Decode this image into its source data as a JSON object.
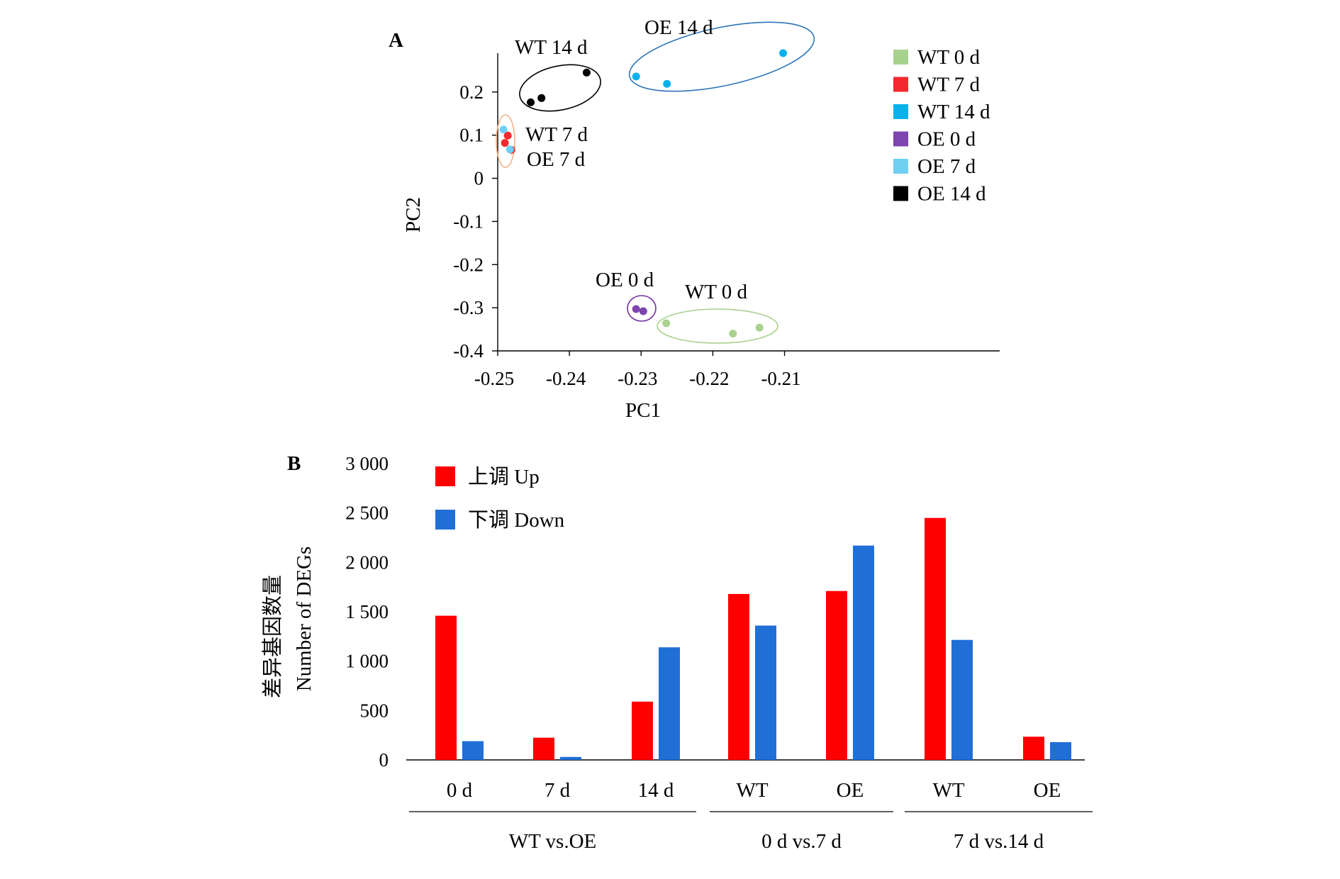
{
  "figure": {
    "panel_a_label": "A",
    "panel_b_label": "B"
  },
  "chart_data": [
    {
      "type": "scatter",
      "xlabel": "PC1",
      "ylabel": "PC2",
      "xlim": [
        -0.25,
        -0.18
      ],
      "ylim": [
        -0.4,
        0.29
      ],
      "xticks": [
        -0.25,
        -0.24,
        -0.23,
        -0.22,
        -0.21
      ],
      "xtick_labels": [
        "-0.25",
        "-0.24",
        "-0.23",
        "-0.22",
        "-0.21"
      ],
      "yticks": [
        0.2,
        0.1,
        0,
        -0.1,
        -0.2,
        -0.3,
        -0.4
      ],
      "ytick_labels": [
        "0.2",
        "0.1",
        "0",
        "-0.1",
        "-0.2",
        "-0.3",
        "-0.4"
      ],
      "legend_position": "top-right",
      "series": [
        {
          "name": "WT 0 d",
          "color": "#a9d18e",
          "points": [
            [
              -0.2265,
              -0.336
            ],
            [
              -0.2172,
              -0.36
            ],
            [
              -0.2135,
              -0.346
            ]
          ]
        },
        {
          "name": "WT 7 d",
          "color": "#f4282e",
          "points": [
            [
              -0.249,
              0.082
            ],
            [
              -0.2486,
              0.099
            ],
            [
              -0.2481,
              0.066
            ]
          ]
        },
        {
          "name": "WT 14 d",
          "color": "#0cb0ec",
          "points": [
            [
              -0.2307,
              0.236
            ],
            [
              -0.2264,
              0.219
            ],
            [
              -0.2102,
              0.29
            ]
          ]
        },
        {
          "name": "OE 0 d",
          "color": "#7e45b0",
          "points": [
            [
              -0.2307,
              -0.303
            ],
            [
              -0.2297,
              -0.308
            ]
          ]
        },
        {
          "name": "OE 7 d",
          "color": "#70d0f4",
          "points": [
            [
              -0.2492,
              0.113
            ],
            [
              -0.2483,
              0.067
            ]
          ]
        },
        {
          "name": "OE 14 d",
          "color": "#000000",
          "points": [
            [
              -0.2454,
              0.176
            ],
            [
              -0.2439,
              0.186
            ],
            [
              -0.2376,
              0.245
            ]
          ]
        }
      ],
      "clusters": [
        {
          "label": "WT 14 d",
          "color": "#000000"
        },
        {
          "label": "OE 14 d",
          "color": "#2e75b6"
        },
        {
          "label": "WT 7 d",
          "color": "#f4b183"
        },
        {
          "label": "OE 7 d",
          "color": "#f4b183"
        },
        {
          "label": "OE 0 d",
          "color": "#7030a0"
        },
        {
          "label": "WT 0 d",
          "color": "#a9d18e"
        }
      ]
    },
    {
      "type": "bar",
      "ylabel_cn": "差异基因数量",
      "ylabel_en": "Number of DEGs",
      "ylim": [
        0,
        3000
      ],
      "yticks": [
        0,
        500,
        1000,
        1500,
        2000,
        2500,
        3000
      ],
      "ytick_labels": [
        "0",
        "500",
        "1 000",
        "1 500",
        "2 000",
        "2 500",
        "3 000"
      ],
      "legend_position": "top-left",
      "categories": [
        "0 d",
        "7 d",
        "14 d",
        "WT",
        "OE",
        "WT",
        "OE"
      ],
      "groups": [
        {
          "label": "WT vs.OE",
          "span": [
            0,
            2
          ]
        },
        {
          "label": "0 d vs.7 d",
          "span": [
            3,
            4
          ]
        },
        {
          "label": "7 d vs.14 d",
          "span": [
            5,
            6
          ]
        }
      ],
      "series": [
        {
          "name": "上调 Up",
          "color": "#ff0000",
          "values": [
            1460,
            225,
            590,
            1680,
            1710,
            2450,
            235
          ]
        },
        {
          "name": "下调 Down",
          "color": "#1f6fd6",
          "values": [
            190,
            30,
            1140,
            1360,
            2170,
            1215,
            180
          ]
        }
      ]
    }
  ]
}
